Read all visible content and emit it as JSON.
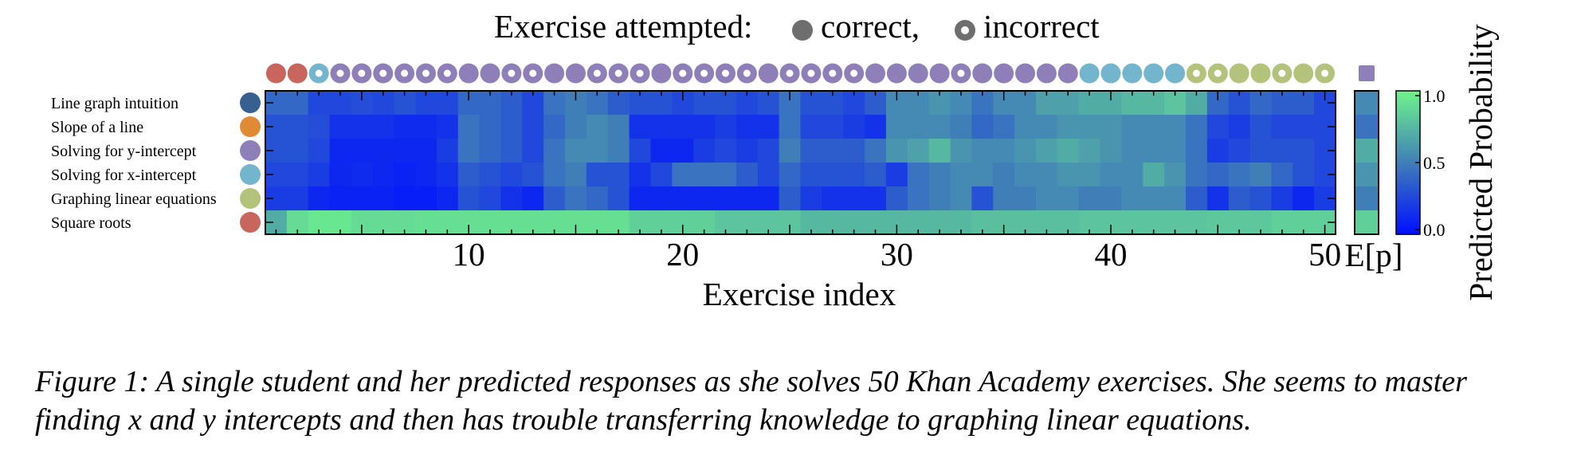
{
  "figure": {
    "caption": "Figure 1: A single student and her predicted responses as she solves 50 Khan Academy exercises. She seems to master finding x and y intercepts and then has trouble transferring knowledge to graphing linear equations."
  },
  "chart_data": {
    "type": "heatmap",
    "title": "Exercise attempted:",
    "legend": {
      "correct_label": "correct,",
      "incorrect_label": "incorrect"
    },
    "xlabel": "Exercise index",
    "x_ticks": [
      10,
      20,
      30,
      40,
      50
    ],
    "expected_label": "E[p]",
    "colorbar": {
      "label": "Predicted Probability",
      "ticks": [
        "1.0",
        "0.5",
        "0.0"
      ],
      "range": [
        0,
        1
      ]
    },
    "rows": [
      {
        "name": "Line graph intuition",
        "color": "#35608f"
      },
      {
        "name": "Slope of a line",
        "color": "#e08a36"
      },
      {
        "name": "Solving for y-intercept",
        "color": "#8f7fb8"
      },
      {
        "name": "Solving for x-intercept",
        "color": "#72b5cd"
      },
      {
        "name": "Graphing linear equations",
        "color": "#b3c37c"
      },
      {
        "name": "Square roots",
        "color": "#c8655d"
      }
    ],
    "attempts": [
      {
        "skill": 5,
        "correct": true
      },
      {
        "skill": 5,
        "correct": true
      },
      {
        "skill": 3,
        "correct": false
      },
      {
        "skill": 2,
        "correct": false
      },
      {
        "skill": 2,
        "correct": false
      },
      {
        "skill": 2,
        "correct": false
      },
      {
        "skill": 2,
        "correct": false
      },
      {
        "skill": 2,
        "correct": false
      },
      {
        "skill": 2,
        "correct": false
      },
      {
        "skill": 2,
        "correct": true
      },
      {
        "skill": 2,
        "correct": true
      },
      {
        "skill": 2,
        "correct": false
      },
      {
        "skill": 2,
        "correct": false
      },
      {
        "skill": 2,
        "correct": true
      },
      {
        "skill": 2,
        "correct": true
      },
      {
        "skill": 2,
        "correct": false
      },
      {
        "skill": 2,
        "correct": false
      },
      {
        "skill": 2,
        "correct": false
      },
      {
        "skill": 2,
        "correct": true
      },
      {
        "skill": 2,
        "correct": false
      },
      {
        "skill": 2,
        "correct": false
      },
      {
        "skill": 2,
        "correct": false
      },
      {
        "skill": 2,
        "correct": false
      },
      {
        "skill": 2,
        "correct": true
      },
      {
        "skill": 2,
        "correct": false
      },
      {
        "skill": 2,
        "correct": false
      },
      {
        "skill": 2,
        "correct": false
      },
      {
        "skill": 2,
        "correct": false
      },
      {
        "skill": 2,
        "correct": true
      },
      {
        "skill": 2,
        "correct": true
      },
      {
        "skill": 2,
        "correct": true
      },
      {
        "skill": 2,
        "correct": true
      },
      {
        "skill": 2,
        "correct": false
      },
      {
        "skill": 2,
        "correct": true
      },
      {
        "skill": 2,
        "correct": true
      },
      {
        "skill": 2,
        "correct": true
      },
      {
        "skill": 2,
        "correct": true
      },
      {
        "skill": 2,
        "correct": true
      },
      {
        "skill": 3,
        "correct": true
      },
      {
        "skill": 3,
        "correct": true
      },
      {
        "skill": 3,
        "correct": true
      },
      {
        "skill": 3,
        "correct": true
      },
      {
        "skill": 3,
        "correct": true
      },
      {
        "skill": 4,
        "correct": false
      },
      {
        "skill": 4,
        "correct": false
      },
      {
        "skill": 4,
        "correct": true
      },
      {
        "skill": 4,
        "correct": true
      },
      {
        "skill": 4,
        "correct": false
      },
      {
        "skill": 4,
        "correct": true
      },
      {
        "skill": 4,
        "correct": false
      }
    ],
    "next_exercise_skill": 2,
    "values": [
      [
        0.4,
        0.4,
        0.25,
        0.25,
        0.28,
        0.25,
        0.3,
        0.25,
        0.25,
        0.4,
        0.4,
        0.35,
        0.25,
        0.45,
        0.5,
        0.45,
        0.35,
        0.3,
        0.3,
        0.25,
        0.3,
        0.3,
        0.25,
        0.3,
        0.45,
        0.3,
        0.3,
        0.25,
        0.35,
        0.55,
        0.55,
        0.6,
        0.55,
        0.45,
        0.55,
        0.55,
        0.65,
        0.65,
        0.7,
        0.7,
        0.75,
        0.75,
        0.8,
        0.7,
        0.4,
        0.3,
        0.4,
        0.35,
        0.35,
        0.25
      ],
      [
        0.3,
        0.3,
        0.28,
        0.15,
        0.15,
        0.15,
        0.12,
        0.12,
        0.15,
        0.45,
        0.4,
        0.35,
        0.25,
        0.4,
        0.5,
        0.55,
        0.5,
        0.15,
        0.15,
        0.15,
        0.15,
        0.2,
        0.15,
        0.15,
        0.45,
        0.25,
        0.25,
        0.2,
        0.15,
        0.55,
        0.55,
        0.55,
        0.5,
        0.4,
        0.45,
        0.55,
        0.55,
        0.6,
        0.6,
        0.6,
        0.55,
        0.55,
        0.55,
        0.45,
        0.25,
        0.2,
        0.3,
        0.25,
        0.25,
        0.25
      ],
      [
        0.3,
        0.3,
        0.25,
        0.1,
        0.1,
        0.1,
        0.1,
        0.1,
        0.2,
        0.45,
        0.4,
        0.35,
        0.25,
        0.45,
        0.55,
        0.55,
        0.5,
        0.25,
        0.1,
        0.1,
        0.2,
        0.25,
        0.2,
        0.25,
        0.5,
        0.35,
        0.35,
        0.35,
        0.45,
        0.6,
        0.65,
        0.75,
        0.6,
        0.55,
        0.55,
        0.6,
        0.65,
        0.7,
        0.65,
        0.6,
        0.55,
        0.55,
        0.55,
        0.45,
        0.2,
        0.25,
        0.3,
        0.3,
        0.3,
        0.25
      ],
      [
        0.25,
        0.25,
        0.2,
        0.1,
        0.12,
        0.1,
        0.08,
        0.1,
        0.15,
        0.35,
        0.3,
        0.25,
        0.3,
        0.45,
        0.5,
        0.3,
        0.3,
        0.15,
        0.25,
        0.45,
        0.45,
        0.45,
        0.35,
        0.25,
        0.4,
        0.3,
        0.3,
        0.3,
        0.35,
        0.2,
        0.45,
        0.5,
        0.55,
        0.55,
        0.5,
        0.55,
        0.55,
        0.6,
        0.6,
        0.55,
        0.55,
        0.7,
        0.6,
        0.45,
        0.4,
        0.45,
        0.5,
        0.4,
        0.3,
        0.25
      ],
      [
        0.2,
        0.2,
        0.1,
        0.08,
        0.08,
        0.08,
        0.06,
        0.06,
        0.1,
        0.3,
        0.25,
        0.15,
        0.1,
        0.35,
        0.45,
        0.4,
        0.3,
        0.1,
        0.1,
        0.1,
        0.1,
        0.1,
        0.1,
        0.1,
        0.35,
        0.2,
        0.15,
        0.15,
        0.15,
        0.35,
        0.45,
        0.5,
        0.55,
        0.3,
        0.5,
        0.5,
        0.55,
        0.55,
        0.5,
        0.5,
        0.55,
        0.55,
        0.55,
        0.35,
        0.15,
        0.35,
        0.3,
        0.2,
        0.1,
        0.2
      ],
      [
        0.7,
        0.9,
        0.95,
        0.95,
        0.9,
        0.9,
        0.9,
        0.92,
        0.92,
        0.92,
        0.92,
        0.92,
        0.92,
        0.92,
        0.92,
        0.92,
        0.92,
        0.85,
        0.85,
        0.85,
        0.85,
        0.8,
        0.8,
        0.8,
        0.8,
        0.75,
        0.75,
        0.75,
        0.75,
        0.75,
        0.75,
        0.75,
        0.75,
        0.78,
        0.78,
        0.78,
        0.78,
        0.78,
        0.8,
        0.8,
        0.8,
        0.8,
        0.8,
        0.8,
        0.82,
        0.82,
        0.82,
        0.85,
        0.85,
        0.85
      ]
    ],
    "expected_values": [
      0.55,
      0.45,
      0.7,
      0.6,
      0.5,
      0.85
    ]
  }
}
